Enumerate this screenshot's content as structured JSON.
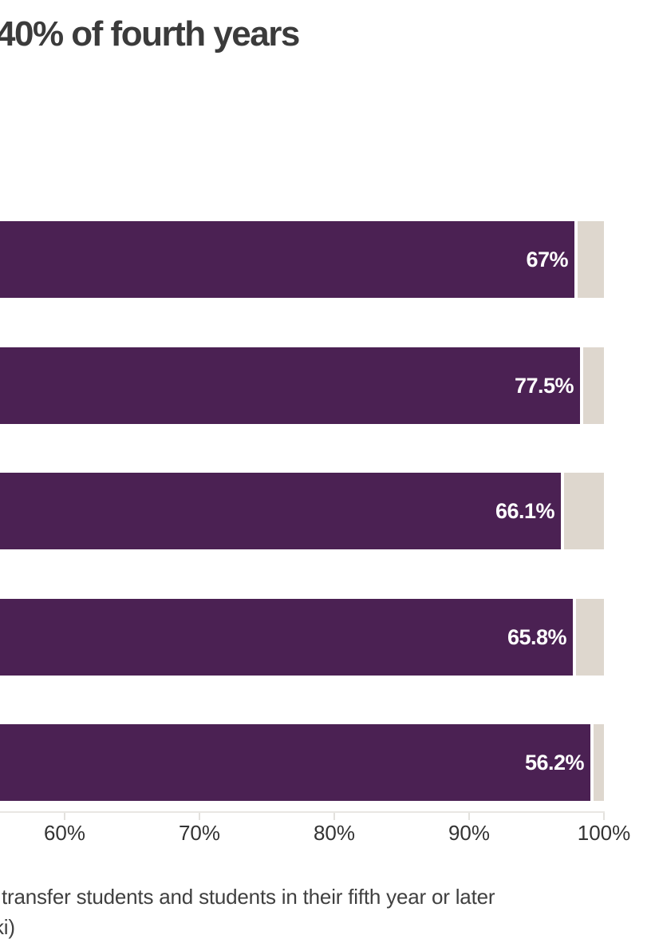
{
  "chart": {
    "title_fragment": "40% of fourth years"
  },
  "chart_data": {
    "type": "bar",
    "orientation": "horizontal",
    "stacked": true,
    "title": "40% of fourth years",
    "bars": [
      {
        "label": "67%",
        "value": 67,
        "segment_end_pct": 97.8,
        "remainder_end_pct": 100
      },
      {
        "label": "77.5%",
        "value": 77.5,
        "segment_end_pct": 98.2,
        "remainder_end_pct": 100
      },
      {
        "label": "66.1%",
        "value": 66.1,
        "segment_end_pct": 96.8,
        "remainder_end_pct": 100
      },
      {
        "label": "65.8%",
        "value": 65.8,
        "segment_end_pct": 97.7,
        "remainder_end_pct": 100
      },
      {
        "label": "56.2%",
        "value": 56.2,
        "segment_end_pct": 99.0,
        "remainder_end_pct": 100
      }
    ],
    "x_axis": {
      "ticks": [
        60,
        70,
        80,
        90,
        100
      ],
      "tick_labels": [
        "60%",
        "70%",
        "80%",
        "90%",
        "100%"
      ],
      "visible_range": [
        55.2,
        100
      ],
      "grid": false
    },
    "colors": {
      "primary_segment": "#4b2153",
      "remainder_segment": "#ded7ce",
      "value_label": "#ffffff"
    }
  },
  "footer": {
    "line1": "transfer students and students in their fifth year or later",
    "line2": "ki)"
  }
}
